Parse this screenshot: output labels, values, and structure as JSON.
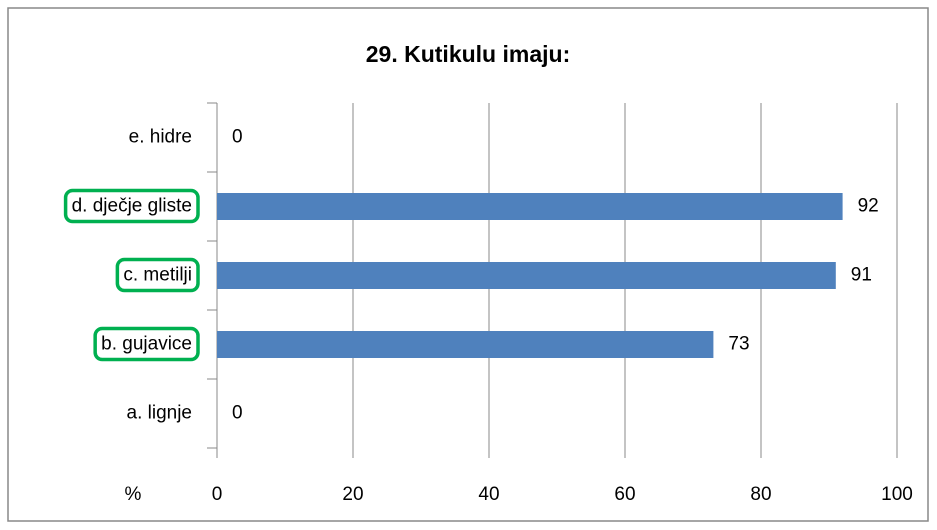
{
  "chart_data": {
    "type": "hbar",
    "title": "29. Kutikulu imaju:",
    "categories": [
      "e. hidre",
      "d. dječje gliste",
      "c. metilji",
      "b. gujavice",
      "a. lignje"
    ],
    "values": [
      0,
      92,
      91,
      73,
      0
    ],
    "color": "#4f81bd",
    "highlighted": [
      false,
      true,
      true,
      true,
      false
    ],
    "highlight_color": "#00b050",
    "xlabel": "%",
    "xlim": [
      0,
      100
    ],
    "xticks": [
      0,
      20,
      40,
      60,
      80,
      100
    ],
    "grid": true
  }
}
